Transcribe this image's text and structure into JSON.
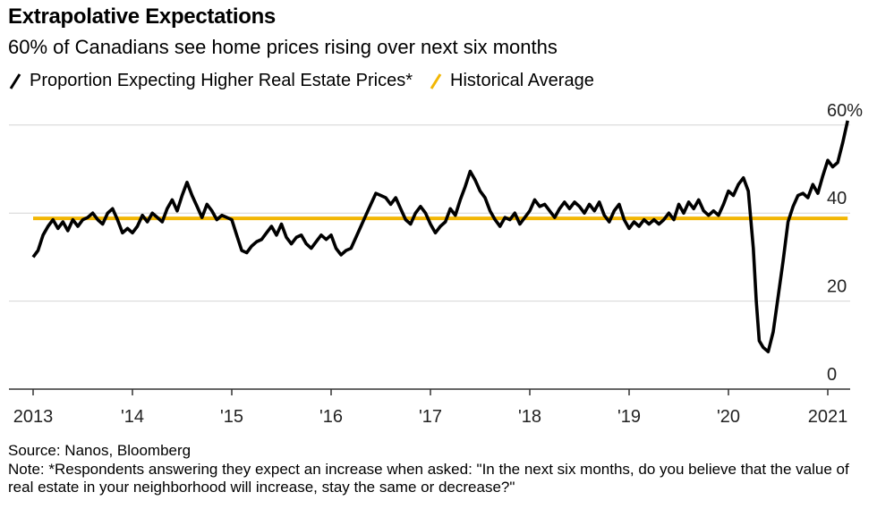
{
  "header": {
    "title": "Extrapolative Expectations",
    "subtitle": "60% of Canadians see home prices rising over next six months"
  },
  "legend": [
    {
      "label": "Proportion Expecting Higher Real Estate Prices*",
      "color": "#000000"
    },
    {
      "label": "Historical Average",
      "color": "#f2b705"
    }
  ],
  "footer": {
    "source": "Source: Nanos, Bloomberg",
    "note": "Note: *Respondents answering they expect an increase when asked: \"In the next six months, do you believe that the value of real estate in your neighborhood will increase, stay the same or decrease?\""
  },
  "chart_data": {
    "type": "line",
    "title": "Extrapolative Expectations",
    "subtitle": "60% of Canadians see home prices rising over next six months",
    "xlabel": "",
    "ylabel": "",
    "x_range": [
      2013.0,
      2021.6
    ],
    "ylim": [
      0,
      60
    ],
    "y_ticks": [
      {
        "value": 0,
        "label": "0"
      },
      {
        "value": 20,
        "label": "20"
      },
      {
        "value": 40,
        "label": "40"
      },
      {
        "value": 60,
        "label": "60%"
      }
    ],
    "x_ticks": [
      {
        "value": 2013,
        "label": "2013"
      },
      {
        "value": 2014,
        "label": "'14"
      },
      {
        "value": 2015,
        "label": "'15"
      },
      {
        "value": 2016,
        "label": "'16"
      },
      {
        "value": 2017,
        "label": "'17"
      },
      {
        "value": 2018,
        "label": "'18"
      },
      {
        "value": 2019,
        "label": "'19"
      },
      {
        "value": 2020,
        "label": "'20"
      },
      {
        "value": 2021,
        "label": "2021"
      }
    ],
    "grid": true,
    "legend_position": "top-left",
    "series": [
      {
        "name": "Proportion Expecting Higher Real Estate Prices*",
        "color": "#000000",
        "points": [
          [
            2013.0,
            30
          ],
          [
            2013.05,
            31.5
          ],
          [
            2013.1,
            35
          ],
          [
            2013.15,
            37
          ],
          [
            2013.2,
            38.5
          ],
          [
            2013.25,
            36.5
          ],
          [
            2013.3,
            38
          ],
          [
            2013.35,
            36
          ],
          [
            2013.4,
            38.5
          ],
          [
            2013.45,
            37
          ],
          [
            2013.5,
            38.5
          ],
          [
            2013.55,
            39
          ],
          [
            2013.6,
            40
          ],
          [
            2013.65,
            38.5
          ],
          [
            2013.7,
            37.5
          ],
          [
            2013.75,
            40
          ],
          [
            2013.8,
            41
          ],
          [
            2013.85,
            38.5
          ],
          [
            2013.9,
            35.5
          ],
          [
            2013.95,
            36.5
          ],
          [
            2014.0,
            35.5
          ],
          [
            2014.05,
            37
          ],
          [
            2014.1,
            39.5
          ],
          [
            2014.15,
            38
          ],
          [
            2014.2,
            40
          ],
          [
            2014.25,
            39
          ],
          [
            2014.3,
            38
          ],
          [
            2014.35,
            41
          ],
          [
            2014.4,
            43
          ],
          [
            2014.45,
            40.5
          ],
          [
            2014.5,
            44
          ],
          [
            2014.55,
            47
          ],
          [
            2014.6,
            44
          ],
          [
            2014.65,
            41.5
          ],
          [
            2014.7,
            39
          ],
          [
            2014.75,
            42
          ],
          [
            2014.8,
            40.5
          ],
          [
            2014.85,
            38.5
          ],
          [
            2014.9,
            39.5
          ],
          [
            2014.95,
            39
          ],
          [
            2015.0,
            38.5
          ],
          [
            2015.05,
            35
          ],
          [
            2015.1,
            31.5
          ],
          [
            2015.15,
            31
          ],
          [
            2015.2,
            32.5
          ],
          [
            2015.25,
            33.5
          ],
          [
            2015.3,
            34
          ],
          [
            2015.35,
            35.5
          ],
          [
            2015.4,
            37
          ],
          [
            2015.45,
            35
          ],
          [
            2015.5,
            37.5
          ],
          [
            2015.55,
            34.5
          ],
          [
            2015.6,
            33
          ],
          [
            2015.65,
            34.5
          ],
          [
            2015.7,
            35
          ],
          [
            2015.75,
            33
          ],
          [
            2015.8,
            32
          ],
          [
            2015.85,
            33.5
          ],
          [
            2015.9,
            35
          ],
          [
            2015.95,
            34
          ],
          [
            2016.0,
            35
          ],
          [
            2016.05,
            32
          ],
          [
            2016.1,
            30.5
          ],
          [
            2016.15,
            31.5
          ],
          [
            2016.2,
            32
          ],
          [
            2016.25,
            34.5
          ],
          [
            2016.3,
            37
          ],
          [
            2016.35,
            39.5
          ],
          [
            2016.4,
            42
          ],
          [
            2016.45,
            44.5
          ],
          [
            2016.5,
            44
          ],
          [
            2016.55,
            43.5
          ],
          [
            2016.6,
            42
          ],
          [
            2016.65,
            43.5
          ],
          [
            2016.7,
            41
          ],
          [
            2016.75,
            38.5
          ],
          [
            2016.8,
            37.5
          ],
          [
            2016.85,
            40
          ],
          [
            2016.9,
            41.5
          ],
          [
            2016.95,
            40
          ],
          [
            2017.0,
            37.5
          ],
          [
            2017.05,
            35.5
          ],
          [
            2017.1,
            37
          ],
          [
            2017.15,
            38
          ],
          [
            2017.2,
            41
          ],
          [
            2017.25,
            39.5
          ],
          [
            2017.3,
            43
          ],
          [
            2017.35,
            46
          ],
          [
            2017.4,
            49.5
          ],
          [
            2017.45,
            47.5
          ],
          [
            2017.5,
            45
          ],
          [
            2017.55,
            43.5
          ],
          [
            2017.6,
            40.5
          ],
          [
            2017.65,
            38.5
          ],
          [
            2017.7,
            37
          ],
          [
            2017.75,
            39
          ],
          [
            2017.8,
            38.5
          ],
          [
            2017.85,
            40
          ],
          [
            2017.9,
            37.5
          ],
          [
            2017.95,
            39
          ],
          [
            2018.0,
            40.5
          ],
          [
            2018.05,
            43
          ],
          [
            2018.1,
            41.5
          ],
          [
            2018.15,
            42
          ],
          [
            2018.2,
            40.5
          ],
          [
            2018.25,
            39
          ],
          [
            2018.3,
            41
          ],
          [
            2018.35,
            42.5
          ],
          [
            2018.4,
            41
          ],
          [
            2018.45,
            42.5
          ],
          [
            2018.5,
            41.5
          ],
          [
            2018.55,
            40
          ],
          [
            2018.6,
            42
          ],
          [
            2018.65,
            40.5
          ],
          [
            2018.7,
            42.5
          ],
          [
            2018.75,
            39.5
          ],
          [
            2018.8,
            38
          ],
          [
            2018.85,
            40.5
          ],
          [
            2018.9,
            42
          ],
          [
            2018.95,
            38.5
          ],
          [
            2019.0,
            36.5
          ],
          [
            2019.05,
            38
          ],
          [
            2019.1,
            37
          ],
          [
            2019.15,
            38.5
          ],
          [
            2019.2,
            37.5
          ],
          [
            2019.25,
            38.5
          ],
          [
            2019.3,
            37.5
          ],
          [
            2019.35,
            38.5
          ],
          [
            2019.4,
            40
          ],
          [
            2019.45,
            38.5
          ],
          [
            2019.5,
            42
          ],
          [
            2019.55,
            40
          ],
          [
            2019.6,
            42.5
          ],
          [
            2019.65,
            41
          ],
          [
            2019.7,
            43
          ],
          [
            2019.75,
            40.5
          ],
          [
            2019.8,
            39.5
          ],
          [
            2019.85,
            40.5
          ],
          [
            2019.9,
            39.5
          ],
          [
            2019.95,
            42
          ],
          [
            2020.0,
            45
          ],
          [
            2020.05,
            44
          ],
          [
            2020.1,
            46.5
          ],
          [
            2020.15,
            48
          ],
          [
            2020.2,
            45
          ],
          [
            2020.25,
            32
          ],
          [
            2020.28,
            20
          ],
          [
            2020.31,
            11
          ],
          [
            2020.35,
            9.5
          ],
          [
            2020.4,
            8.5
          ],
          [
            2020.45,
            13
          ],
          [
            2020.5,
            21
          ],
          [
            2020.55,
            29
          ],
          [
            2020.6,
            38
          ],
          [
            2020.65,
            41.5
          ],
          [
            2020.7,
            44
          ],
          [
            2020.75,
            44.5
          ],
          [
            2020.8,
            43.5
          ],
          [
            2020.85,
            46.5
          ],
          [
            2020.9,
            44.5
          ],
          [
            2020.95,
            48.5
          ],
          [
            2021.0,
            52
          ],
          [
            2021.05,
            50.5
          ],
          [
            2021.1,
            51.5
          ],
          [
            2021.15,
            56
          ],
          [
            2021.2,
            61
          ]
        ]
      },
      {
        "name": "Historical Average",
        "color": "#f2b705",
        "points": [
          [
            2013.0,
            38.8
          ],
          [
            2021.2,
            38.8
          ]
        ]
      }
    ]
  }
}
